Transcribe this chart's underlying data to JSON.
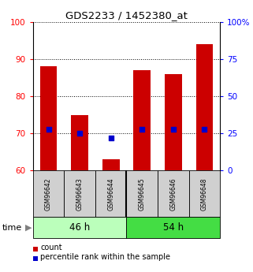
{
  "title": "GDS2233 / 1452380_at",
  "categories": [
    "GSM96642",
    "GSM96643",
    "GSM96644",
    "GSM96645",
    "GSM96646",
    "GSM96648"
  ],
  "bar_values": [
    88,
    75,
    63,
    87,
    86,
    94
  ],
  "bar_bottom": 60,
  "percentile_values": [
    28,
    25,
    22,
    28,
    28,
    28
  ],
  "bar_color": "#cc0000",
  "percentile_color": "#0000cc",
  "ylim_left": [
    60,
    100
  ],
  "ylim_right": [
    0,
    100
  ],
  "yticks_left": [
    60,
    70,
    80,
    90,
    100
  ],
  "yticks_right": [
    0,
    25,
    50,
    75,
    100
  ],
  "ytick_labels_right": [
    "0",
    "25",
    "50",
    "75",
    "100%"
  ],
  "groups": [
    "46 h",
    "54 h"
  ],
  "group_colors_46": "#bbffbb",
  "group_colors_54": "#44dd44",
  "label_count": "count",
  "label_percentile": "percentile rank within the sample",
  "time_label": "time"
}
